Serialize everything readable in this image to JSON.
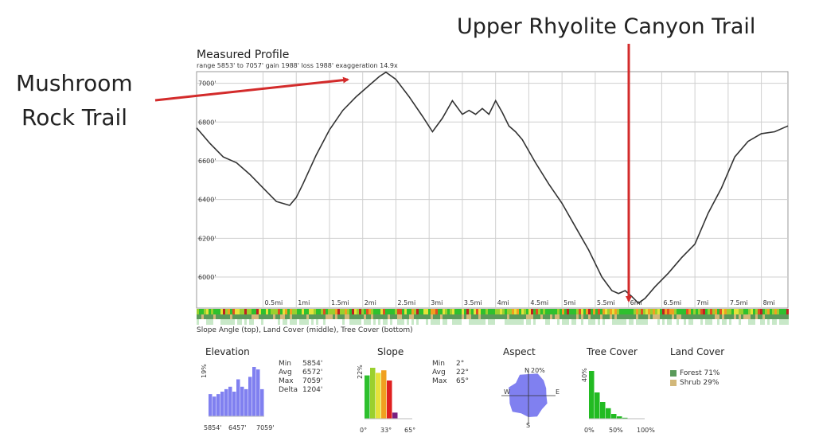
{
  "annotations": {
    "left_line1": "Mushroom",
    "left_line2": "Rock Trail",
    "right": "Upper Rhyolite Canyon Trail",
    "arrow_color": "#d32b2b"
  },
  "chart_data": {
    "type": "line",
    "title": "Measured Profile",
    "subtitle": "range 5853' to 7057'  gain 1988'  loss 1988'  exaggeration 14.9x",
    "xlim": [
      -0.5,
      8.4
    ],
    "ylim": [
      5840,
      7060
    ],
    "y_ticks": [
      {
        "v": 6000,
        "label": "6000'"
      },
      {
        "v": 6200,
        "label": "6200'"
      },
      {
        "v": 6400,
        "label": "6400'"
      },
      {
        "v": 6600,
        "label": "6600'"
      },
      {
        "v": 6800,
        "label": "6800'"
      },
      {
        "v": 7000,
        "label": "7000'"
      }
    ],
    "x_ticks": [
      {
        "v": 0.5,
        "label": "0.5mi"
      },
      {
        "v": 1,
        "label": "1mi"
      },
      {
        "v": 1.5,
        "label": "1.5mi"
      },
      {
        "v": 2,
        "label": "2mi"
      },
      {
        "v": 2.5,
        "label": "2.5mi"
      },
      {
        "v": 3,
        "label": "3mi"
      },
      {
        "v": 3.5,
        "label": "3.5mi"
      },
      {
        "v": 4,
        "label": "4mi"
      },
      {
        "v": 4.5,
        "label": "4.5mi"
      },
      {
        "v": 5,
        "label": "5mi"
      },
      {
        "v": 5.5,
        "label": "5.5mi"
      },
      {
        "v": 6,
        "label": "6mi"
      },
      {
        "v": 6.5,
        "label": "6.5mi"
      },
      {
        "v": 7,
        "label": "7mi"
      },
      {
        "v": 7.5,
        "label": "7.5mi"
      },
      {
        "v": 8,
        "label": "8mi"
      }
    ],
    "series": [
      {
        "x": [
          -0.5,
          -0.3,
          -0.1,
          0.1,
          0.3,
          0.5,
          0.7,
          0.9,
          1.0,
          1.1,
          1.3,
          1.5,
          1.7,
          1.9,
          2.1,
          2.25,
          2.35,
          2.5,
          2.7,
          2.9,
          3.05,
          3.2,
          3.35,
          3.5,
          3.6,
          3.7,
          3.8,
          3.9,
          4.0,
          4.1,
          4.2,
          4.3,
          4.4,
          4.6,
          4.8,
          5.0,
          5.2,
          5.4,
          5.6,
          5.75,
          5.85,
          5.95,
          6.05,
          6.15,
          6.25,
          6.4,
          6.6,
          6.8,
          7.0,
          7.2,
          7.4,
          7.6,
          7.8,
          8.0,
          8.2,
          8.4
        ],
        "y": [
          6770,
          6690,
          6620,
          6590,
          6530,
          6460,
          6390,
          6370,
          6410,
          6480,
          6630,
          6760,
          6860,
          6930,
          6990,
          7035,
          7057,
          7020,
          6930,
          6830,
          6750,
          6820,
          6910,
          6840,
          6860,
          6840,
          6870,
          6840,
          6910,
          6850,
          6780,
          6750,
          6710,
          6590,
          6480,
          6380,
          6260,
          6140,
          6000,
          5930,
          5915,
          5930,
          5900,
          5865,
          5890,
          5950,
          6020,
          6100,
          6170,
          6330,
          6460,
          6620,
          6700,
          6740,
          6750,
          6780
        ]
      }
    ]
  },
  "strip_caption": "Slope Angle (top), Land Cover (middle), Tree Cover (bottom)",
  "panels": {
    "elevation": {
      "title": "Elevation",
      "ymax_label": "19%",
      "x_labels": [
        "5854'",
        "6457'",
        "7059'"
      ],
      "values": [
        0.45,
        0.4,
        0.45,
        0.5,
        0.55,
        0.6,
        0.5,
        0.75,
        0.6,
        0.55,
        0.8,
        1.0,
        0.95,
        0.55
      ],
      "color": "#8080f0",
      "stats": [
        {
          "k": "Min",
          "v": "5854'"
        },
        {
          "k": "Avg",
          "v": "6572'"
        },
        {
          "k": "Max",
          "v": "7059'"
        },
        {
          "k": "Delta",
          "v": "1204'"
        }
      ]
    },
    "slope": {
      "title": "Slope",
      "ymax_label": "22%",
      "x_labels": [
        "0°",
        "33°",
        "65°"
      ],
      "values": [
        0.85,
        1.0,
        0.9,
        0.95,
        0.75,
        0.12
      ],
      "colors": [
        "#2ec02e",
        "#9ad02e",
        "#e6e23a",
        "#f0a020",
        "#e02020",
        "#7a2080"
      ],
      "stats": [
        {
          "k": "Min",
          "v": "2°"
        },
        {
          "k": "Avg",
          "v": "22°"
        },
        {
          "k": "Max",
          "v": "65°"
        }
      ]
    },
    "aspect": {
      "title": "Aspect",
      "labels": {
        "n": "N",
        "s": "S",
        "e": "E",
        "w": "W",
        "pct": "20%"
      },
      "color": "#8080f0"
    },
    "tree_cover": {
      "title": "Tree Cover",
      "ymax_label": "40%",
      "x_labels": [
        "0%",
        "50%",
        "100%"
      ],
      "values": [
        1.0,
        0.55,
        0.35,
        0.22,
        0.1,
        0.05,
        0.02
      ],
      "color": "#22bb22"
    },
    "land_cover": {
      "title": "Land Cover",
      "items": [
        {
          "label": "Forest 71%",
          "color": "#5a9a5a"
        },
        {
          "label": "Shrub 29%",
          "color": "#d2b87a"
        }
      ]
    }
  }
}
